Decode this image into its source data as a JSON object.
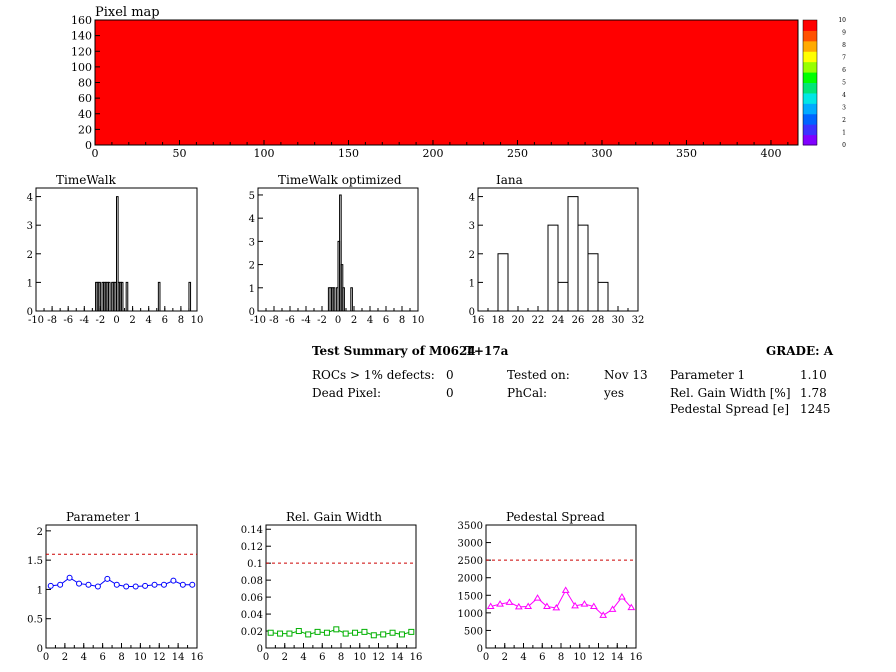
{
  "summary": {
    "title": "Test Summary of M0624",
    "condition": "T+17a",
    "grade": "GRADE:  A",
    "rocs_label": "ROCs > 1% defects:",
    "rocs_value": "0",
    "dead_label": "Dead Pixel:",
    "dead_value": "0",
    "tested_label": "Tested on:",
    "tested_value": "Nov 13",
    "phcal_label": "PhCal:",
    "phcal_value": "yes",
    "param1_label": "Parameter 1",
    "param1_value": "1.10",
    "gain_label": "Rel. Gain Width [%]",
    "gain_value": "1.78",
    "ped_label": "Pedestal Spread [e]",
    "ped_value": "1245"
  },
  "colors": {
    "map": "#ff0000",
    "param1": "#0000ff",
    "gain": "#00b000",
    "ped": "#ff00ff",
    "cut": "#cc0000"
  },
  "chart_data": [
    {
      "id": "pixelmap",
      "type": "heatmap",
      "title": "Pixel map",
      "xlim": [
        0,
        416
      ],
      "ylim": [
        0,
        160
      ],
      "xticks": [
        0,
        50,
        100,
        150,
        200,
        250,
        300,
        350,
        400
      ],
      "yticks": [
        0,
        20,
        40,
        60,
        80,
        100,
        120,
        140,
        160
      ],
      "z_value": 10,
      "zticks": [
        0,
        1,
        2,
        3,
        4,
        5,
        6,
        7,
        8,
        9,
        10
      ]
    },
    {
      "id": "timewalk",
      "type": "bar",
      "title": "TimeWalk",
      "xlim": [
        -10,
        10
      ],
      "ylim": [
        0,
        4.3
      ],
      "xticks": [
        -10,
        -8,
        -6,
        -4,
        -2,
        0,
        2,
        4,
        6,
        8,
        10
      ],
      "yticks": [
        0,
        1,
        2,
        3,
        4
      ],
      "bin_width": 0.2,
      "bins": [
        [
          -2.6,
          1
        ],
        [
          -2.4,
          1
        ],
        [
          -2.2,
          1
        ],
        [
          -1.8,
          1
        ],
        [
          -1.6,
          1
        ],
        [
          -1.4,
          1
        ],
        [
          -1.2,
          1
        ],
        [
          -1.0,
          1
        ],
        [
          -0.6,
          1
        ],
        [
          -0.4,
          1
        ],
        [
          -0.2,
          1
        ],
        [
          0.0,
          4
        ],
        [
          0.2,
          1
        ],
        [
          0.4,
          1
        ],
        [
          0.6,
          1
        ],
        [
          1.2,
          1
        ],
        [
          5.2,
          1
        ],
        [
          9.0,
          1
        ]
      ]
    },
    {
      "id": "timewalk_opt",
      "type": "bar",
      "title": "TimeWalk optimized",
      "xlim": [
        -10,
        10
      ],
      "ylim": [
        0,
        5.3
      ],
      "xticks": [
        -10,
        -8,
        -6,
        -4,
        -2,
        0,
        2,
        4,
        6,
        8,
        10
      ],
      "yticks": [
        0,
        1,
        2,
        3,
        4,
        5
      ],
      "bin_width": 0.2,
      "bins": [
        [
          -1.2,
          1
        ],
        [
          -1.0,
          1
        ],
        [
          -0.8,
          1
        ],
        [
          -0.6,
          1
        ],
        [
          -0.2,
          1
        ],
        [
          0.0,
          3
        ],
        [
          0.2,
          5
        ],
        [
          0.4,
          2
        ],
        [
          0.6,
          1
        ],
        [
          1.6,
          1
        ]
      ]
    },
    {
      "id": "iana",
      "type": "bar",
      "title": "Iana",
      "xlim": [
        16,
        32
      ],
      "ylim": [
        0,
        4.3
      ],
      "xticks": [
        16,
        18,
        20,
        22,
        24,
        26,
        28,
        30,
        32
      ],
      "yticks": [
        0,
        1,
        2,
        3,
        4
      ],
      "bin_width": 1,
      "bins": [
        [
          18,
          2
        ],
        [
          23,
          3
        ],
        [
          24,
          1
        ],
        [
          25,
          4
        ],
        [
          26,
          3
        ],
        [
          27,
          2
        ],
        [
          28,
          1
        ]
      ]
    },
    {
      "id": "param1",
      "type": "line",
      "title": "Parameter 1",
      "xlim": [
        0,
        16
      ],
      "ylim": [
        0,
        2.1
      ],
      "xticks": [
        0,
        2,
        4,
        6,
        8,
        10,
        12,
        14,
        16
      ],
      "yticks": [
        0,
        0.5,
        1,
        1.5,
        2
      ],
      "cut": 1.6,
      "marker": "circle",
      "x": [
        0.5,
        1.5,
        2.5,
        3.5,
        4.5,
        5.5,
        6.5,
        7.5,
        8.5,
        9.5,
        10.5,
        11.5,
        12.5,
        13.5,
        14.5,
        15.5
      ],
      "y": [
        1.06,
        1.08,
        1.2,
        1.1,
        1.08,
        1.05,
        1.18,
        1.08,
        1.05,
        1.05,
        1.06,
        1.08,
        1.08,
        1.15,
        1.08,
        1.08
      ]
    },
    {
      "id": "gain",
      "type": "line",
      "title": "Rel. Gain Width",
      "xlim": [
        0,
        16
      ],
      "ylim": [
        0,
        0.145
      ],
      "xticks": [
        0,
        2,
        4,
        6,
        8,
        10,
        12,
        14,
        16
      ],
      "yticks": [
        0,
        0.02,
        0.04,
        0.06,
        0.08,
        0.1,
        0.12,
        0.14
      ],
      "cut": 0.1,
      "marker": "square",
      "x": [
        0.5,
        1.5,
        2.5,
        3.5,
        4.5,
        5.5,
        6.5,
        7.5,
        8.5,
        9.5,
        10.5,
        11.5,
        12.5,
        13.5,
        14.5,
        15.5
      ],
      "y": [
        0.018,
        0.017,
        0.017,
        0.02,
        0.016,
        0.019,
        0.018,
        0.022,
        0.017,
        0.018,
        0.019,
        0.015,
        0.016,
        0.018,
        0.016,
        0.019
      ]
    },
    {
      "id": "ped",
      "type": "line",
      "title": "Pedestal Spread",
      "xlim": [
        0,
        16
      ],
      "ylim": [
        0,
        3500
      ],
      "xticks": [
        0,
        2,
        4,
        6,
        8,
        10,
        12,
        14,
        16
      ],
      "yticks": [
        0,
        500,
        1000,
        1500,
        2000,
        2500,
        3000,
        3500
      ],
      "cut": 2500,
      "marker": "triangle",
      "x": [
        0.5,
        1.5,
        2.5,
        3.5,
        4.5,
        5.5,
        6.5,
        7.5,
        8.5,
        9.5,
        10.5,
        11.5,
        12.5,
        13.5,
        14.5,
        15.5
      ],
      "y": [
        1180,
        1250,
        1300,
        1170,
        1180,
        1420,
        1180,
        1140,
        1640,
        1200,
        1250,
        1180,
        930,
        1100,
        1450,
        1150
      ]
    }
  ]
}
